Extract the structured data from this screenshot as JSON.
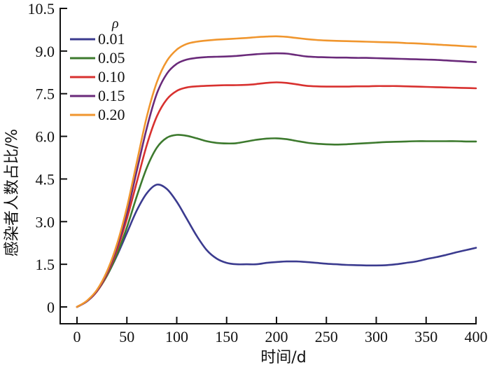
{
  "chart_data": {
    "type": "line",
    "title": "",
    "xlabel": "时间/d",
    "ylabel": "感染者人数占比/%",
    "xlim": [
      0,
      400
    ],
    "ylim": [
      0,
      10.5
    ],
    "xticks": [
      0,
      50,
      100,
      150,
      200,
      250,
      300,
      350,
      400
    ],
    "xtick_labels": [
      "0",
      "50",
      "100",
      "150",
      "200",
      "250",
      "300",
      "350",
      "400"
    ],
    "yticks": [
      0,
      1.5,
      3.0,
      4.5,
      6.0,
      7.5,
      9.0,
      10.5
    ],
    "ytick_labels": [
      "0",
      "1.5",
      "3.0",
      "4.5",
      "6.0",
      "7.5",
      "9.0",
      "10.5"
    ],
    "grid": false,
    "legend": {
      "title": "ρ",
      "placement": "top-left"
    },
    "x": [
      0,
      10,
      20,
      30,
      40,
      50,
      60,
      70,
      80,
      90,
      100,
      110,
      120,
      130,
      140,
      150,
      160,
      170,
      180,
      190,
      200,
      210,
      220,
      230,
      240,
      250,
      260,
      270,
      280,
      290,
      300,
      310,
      320,
      330,
      340,
      350,
      360,
      370,
      380,
      390,
      400
    ],
    "series": [
      {
        "name": "0.01",
        "color": "#3b3b8f",
        "values": [
          0,
          0.2,
          0.55,
          1.1,
          1.8,
          2.6,
          3.4,
          4.0,
          4.3,
          4.15,
          3.7,
          3.1,
          2.5,
          2.0,
          1.7,
          1.55,
          1.5,
          1.5,
          1.5,
          1.55,
          1.58,
          1.6,
          1.6,
          1.58,
          1.55,
          1.52,
          1.5,
          1.48,
          1.47,
          1.46,
          1.46,
          1.47,
          1.5,
          1.55,
          1.6,
          1.68,
          1.75,
          1.83,
          1.92,
          2.0,
          2.08
        ]
      },
      {
        "name": "0.05",
        "color": "#3d7a2e",
        "values": [
          0,
          0.2,
          0.55,
          1.1,
          1.85,
          2.8,
          3.9,
          4.9,
          5.6,
          5.95,
          6.05,
          6.02,
          5.93,
          5.83,
          5.77,
          5.75,
          5.76,
          5.82,
          5.88,
          5.92,
          5.93,
          5.9,
          5.84,
          5.78,
          5.74,
          5.72,
          5.71,
          5.72,
          5.74,
          5.76,
          5.78,
          5.8,
          5.81,
          5.82,
          5.83,
          5.83,
          5.83,
          5.83,
          5.83,
          5.82,
          5.82
        ]
      },
      {
        "name": "0.10",
        "color": "#d8312f",
        "values": [
          0,
          0.2,
          0.55,
          1.15,
          2.0,
          3.1,
          4.4,
          5.7,
          6.7,
          7.3,
          7.6,
          7.72,
          7.76,
          7.78,
          7.79,
          7.8,
          7.8,
          7.81,
          7.84,
          7.88,
          7.9,
          7.88,
          7.83,
          7.78,
          7.76,
          7.75,
          7.75,
          7.75,
          7.76,
          7.76,
          7.77,
          7.77,
          7.77,
          7.76,
          7.75,
          7.74,
          7.73,
          7.72,
          7.71,
          7.7,
          7.69
        ]
      },
      {
        "name": "0.15",
        "color": "#6a2a7a",
        "values": [
          0,
          0.2,
          0.57,
          1.2,
          2.1,
          3.3,
          4.8,
          6.3,
          7.5,
          8.2,
          8.55,
          8.7,
          8.76,
          8.79,
          8.8,
          8.81,
          8.83,
          8.86,
          8.89,
          8.91,
          8.92,
          8.91,
          8.86,
          8.81,
          8.79,
          8.78,
          8.77,
          8.77,
          8.76,
          8.76,
          8.75,
          8.74,
          8.73,
          8.72,
          8.71,
          8.7,
          8.69,
          8.67,
          8.65,
          8.63,
          8.61
        ]
      },
      {
        "name": "0.20",
        "color": "#f0962e",
        "values": [
          0,
          0.22,
          0.6,
          1.25,
          2.2,
          3.5,
          5.1,
          6.7,
          7.9,
          8.65,
          9.05,
          9.25,
          9.33,
          9.37,
          9.4,
          9.42,
          9.44,
          9.46,
          9.49,
          9.51,
          9.52,
          9.5,
          9.46,
          9.42,
          9.39,
          9.37,
          9.36,
          9.35,
          9.34,
          9.33,
          9.32,
          9.31,
          9.3,
          9.28,
          9.27,
          9.25,
          9.23,
          9.21,
          9.19,
          9.17,
          9.15
        ]
      }
    ]
  }
}
